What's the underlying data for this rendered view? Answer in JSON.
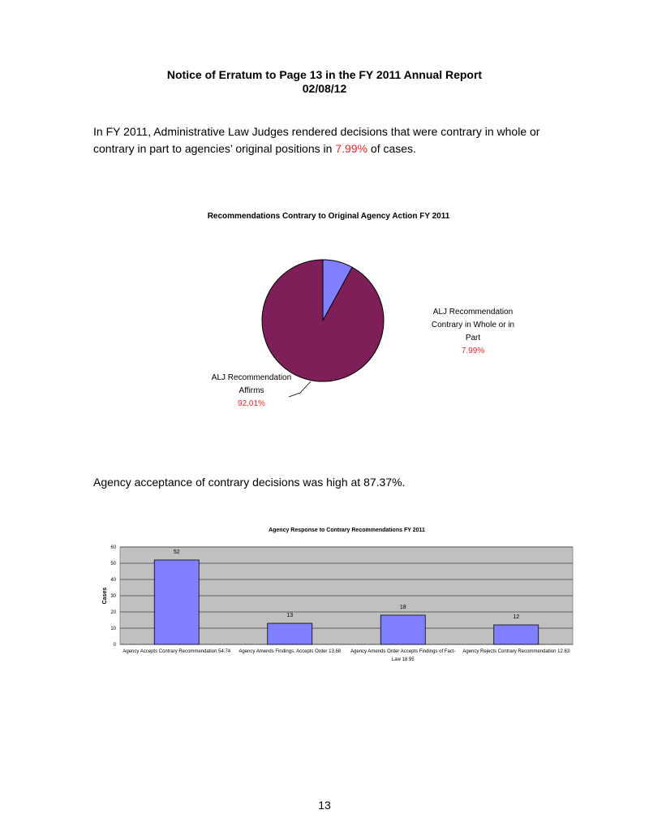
{
  "header": {
    "title": "Notice of Erratum to Page 13 in the FY 2011 Annual Report",
    "date": "02/08/12"
  },
  "paragraphs": [
    {
      "parts": [
        "In FY 2011,  Administrative Law Judges rendered decisions that were contrary in whole or contrary in part to agencies’ original positions in ",
        "7.99%",
        " of cases."
      ]
    },
    {
      "parts": [
        "Agency acceptance of contrary decisions was high at 87.37%."
      ]
    }
  ],
  "chart_data": [
    {
      "type": "pie",
      "title": "Recommendations Contrary to Original Agency Action FY 2011",
      "categories": [
        "ALJ Recommendation Contrary in Whole or in Part",
        "ALJ Recommendation Affirms"
      ],
      "values": [
        7.99,
        92.01
      ],
      "value_labels": [
        "7.99%",
        "92.01%"
      ],
      "colors": [
        "#8080ff",
        "#7f1f5a"
      ]
    },
    {
      "type": "bar",
      "title": "Agency Response to Contrary Recommendations FY 2011",
      "ylabel": "Cases",
      "categories": [
        "Agency Accepts Contrary Recommendation",
        "Agency Amends Findings, Accepts Order",
        "Agency Amends Order Accepts Findings of Fact-Law",
        "Agency Rejects Contrary Recommendation"
      ],
      "category_percentages": [
        54.74,
        13.68,
        18.95,
        12.63
      ],
      "values": [
        52,
        13,
        18,
        12
      ],
      "color": "#8080ff",
      "background": "#c0c0c0",
      "ylim": [
        0,
        60
      ],
      "yticks": [
        0,
        10,
        20,
        30,
        40,
        50,
        60
      ],
      "grid": true
    }
  ],
  "page_number": "13"
}
